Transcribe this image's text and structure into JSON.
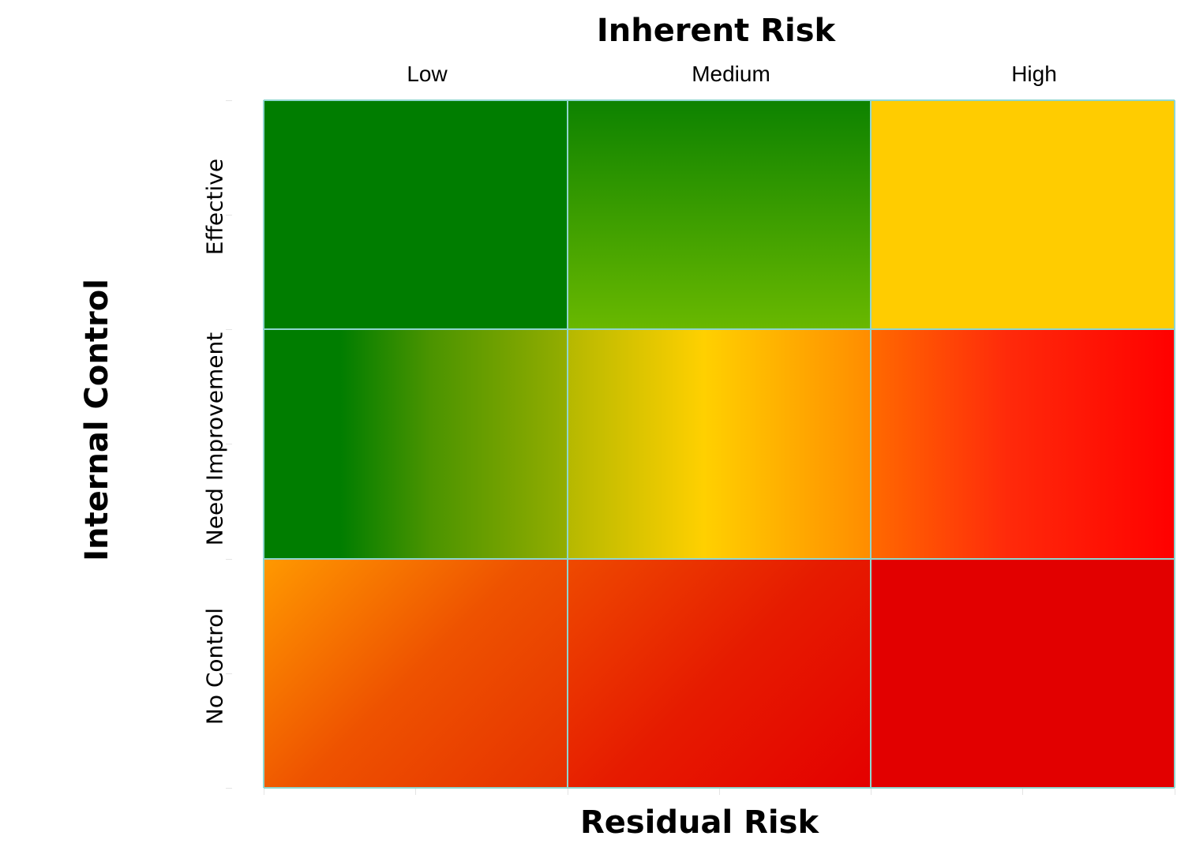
{
  "chart_data": {
    "type": "heatmap",
    "title": "Inherent Risk",
    "xlabel": "Residual Risk",
    "ylabel": "Internal Control",
    "columns": [
      "Low",
      "Medium",
      "High"
    ],
    "rows": [
      "Effective",
      "Need Improvement",
      "No Control"
    ],
    "cells": [
      {
        "row": "Effective",
        "column": "Low",
        "colors": [
          "#007d00",
          "#007d00"
        ]
      },
      {
        "row": "Effective",
        "column": "Medium",
        "colors": [
          "#0d8200",
          "#69b800"
        ]
      },
      {
        "row": "Effective",
        "column": "High",
        "colors": [
          "#ffcc00",
          "#ffcc00"
        ]
      },
      {
        "row": "Need Improvement",
        "column": "Low",
        "colors": [
          "#007d00",
          "#4b9400",
          "#94ad00"
        ]
      },
      {
        "row": "Need Improvement",
        "column": "Medium",
        "colors": [
          "#b5b800",
          "#ffd000",
          "#ff8c00"
        ]
      },
      {
        "row": "Need Improvement",
        "column": "High",
        "colors": [
          "#ff6a00",
          "#ff2a0a",
          "#ff0000"
        ]
      },
      {
        "row": "No Control",
        "column": "Low",
        "colors": [
          "#ff9900",
          "#ee5200",
          "#e63000"
        ]
      },
      {
        "row": "No Control",
        "column": "Medium",
        "colors": [
          "#ee4a00",
          "#e61b00",
          "#e40000"
        ]
      },
      {
        "row": "No Control",
        "column": "High",
        "colors": [
          "#e20000",
          "#e20000"
        ]
      }
    ]
  }
}
